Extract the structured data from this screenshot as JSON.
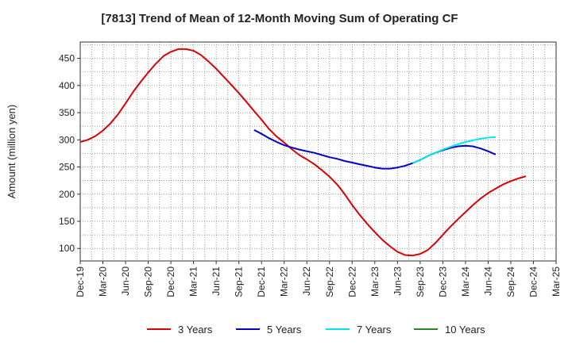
{
  "chart_data": {
    "type": "line",
    "title": "[7813]  Trend of Mean of 12-Month Moving Sum of Operating CF",
    "xlabel": "",
    "ylabel": "Amount (million yen)",
    "ylim": [
      77,
      480
    ],
    "yticks": [
      100,
      150,
      200,
      250,
      300,
      350,
      400,
      450
    ],
    "xticks": [
      "Dec-19",
      "Mar-20",
      "Jun-20",
      "Sep-20",
      "Dec-20",
      "Mar-21",
      "Jun-21",
      "Sep-21",
      "Dec-21",
      "Mar-22",
      "Jun-22",
      "Sep-22",
      "Dec-22",
      "Mar-23",
      "Jun-23",
      "Sep-23",
      "Dec-23",
      "Mar-24",
      "Jun-24",
      "Sep-24",
      "Dec-24",
      "Mar-25"
    ],
    "grid": true,
    "legend_position": "bottom",
    "series": [
      {
        "name": "3 Years",
        "color": "#dd0000",
        "points": [
          [
            0,
            296
          ],
          [
            0.33,
            300
          ],
          [
            0.67,
            307
          ],
          [
            1,
            317
          ],
          [
            1.33,
            330
          ],
          [
            1.67,
            347
          ],
          [
            2,
            367
          ],
          [
            2.33,
            388
          ],
          [
            2.67,
            407
          ],
          [
            3,
            424
          ],
          [
            3.33,
            440
          ],
          [
            3.67,
            454
          ],
          [
            4,
            462
          ],
          [
            4.33,
            467
          ],
          [
            4.67,
            467
          ],
          [
            5,
            464
          ],
          [
            5.33,
            456
          ],
          [
            5.67,
            444
          ],
          [
            6,
            431
          ],
          [
            6.33,
            416
          ],
          [
            6.67,
            401
          ],
          [
            7,
            386
          ],
          [
            7.33,
            370
          ],
          [
            7.67,
            353
          ],
          [
            8,
            337
          ],
          [
            8.33,
            320
          ],
          [
            8.67,
            306
          ],
          [
            9,
            295
          ],
          [
            9.33,
            283
          ],
          [
            9.67,
            272
          ],
          [
            10,
            264
          ],
          [
            10.33,
            255
          ],
          [
            10.67,
            244
          ],
          [
            11,
            232
          ],
          [
            11.33,
            218
          ],
          [
            11.67,
            200
          ],
          [
            12,
            180
          ],
          [
            12.33,
            162
          ],
          [
            12.67,
            145
          ],
          [
            13,
            130
          ],
          [
            13.33,
            116
          ],
          [
            13.67,
            104
          ],
          [
            14,
            94
          ],
          [
            14.33,
            88
          ],
          [
            14.67,
            87
          ],
          [
            15,
            90
          ],
          [
            15.33,
            97
          ],
          [
            15.67,
            110
          ],
          [
            16,
            125
          ],
          [
            16.33,
            140
          ],
          [
            16.67,
            154
          ],
          [
            17,
            167
          ],
          [
            17.33,
            180
          ],
          [
            17.67,
            192
          ],
          [
            18,
            202
          ],
          [
            18.33,
            210
          ],
          [
            18.67,
            218
          ],
          [
            19,
            224
          ],
          [
            19.33,
            229
          ],
          [
            19.67,
            233
          ]
        ]
      },
      {
        "name": "5 Years",
        "color": "#0000cc",
        "points": [
          [
            7.67,
            318
          ],
          [
            8,
            311
          ],
          [
            8.33,
            303
          ],
          [
            8.67,
            296
          ],
          [
            9,
            290
          ],
          [
            9.33,
            286
          ],
          [
            9.67,
            282
          ],
          [
            10,
            279
          ],
          [
            10.33,
            276
          ],
          [
            10.67,
            272
          ],
          [
            11,
            268
          ],
          [
            11.33,
            265
          ],
          [
            11.67,
            261
          ],
          [
            12,
            258
          ],
          [
            12.33,
            255
          ],
          [
            12.67,
            252
          ],
          [
            13,
            249
          ],
          [
            13.33,
            247
          ],
          [
            13.67,
            247
          ],
          [
            14,
            249
          ],
          [
            14.33,
            252
          ],
          [
            14.67,
            257
          ],
          [
            15,
            263
          ],
          [
            15.33,
            270
          ],
          [
            15.67,
            276
          ],
          [
            16,
            281
          ],
          [
            16.33,
            285
          ],
          [
            16.67,
            288
          ],
          [
            17,
            289
          ],
          [
            17.33,
            288
          ],
          [
            17.67,
            284
          ],
          [
            18,
            279
          ],
          [
            18.33,
            273
          ]
        ]
      },
      {
        "name": "7 Years",
        "color": "#00e5ee",
        "points": [
          [
            14.67,
            257
          ],
          [
            15,
            263
          ],
          [
            15.33,
            270
          ],
          [
            15.67,
            276
          ],
          [
            16,
            282
          ],
          [
            16.33,
            287
          ],
          [
            16.67,
            292
          ],
          [
            17,
            296
          ],
          [
            17.33,
            299
          ],
          [
            17.67,
            302
          ],
          [
            18,
            304
          ],
          [
            18.33,
            305
          ]
        ]
      },
      {
        "name": "10 Years",
        "color": "#228b22",
        "points": []
      }
    ]
  }
}
